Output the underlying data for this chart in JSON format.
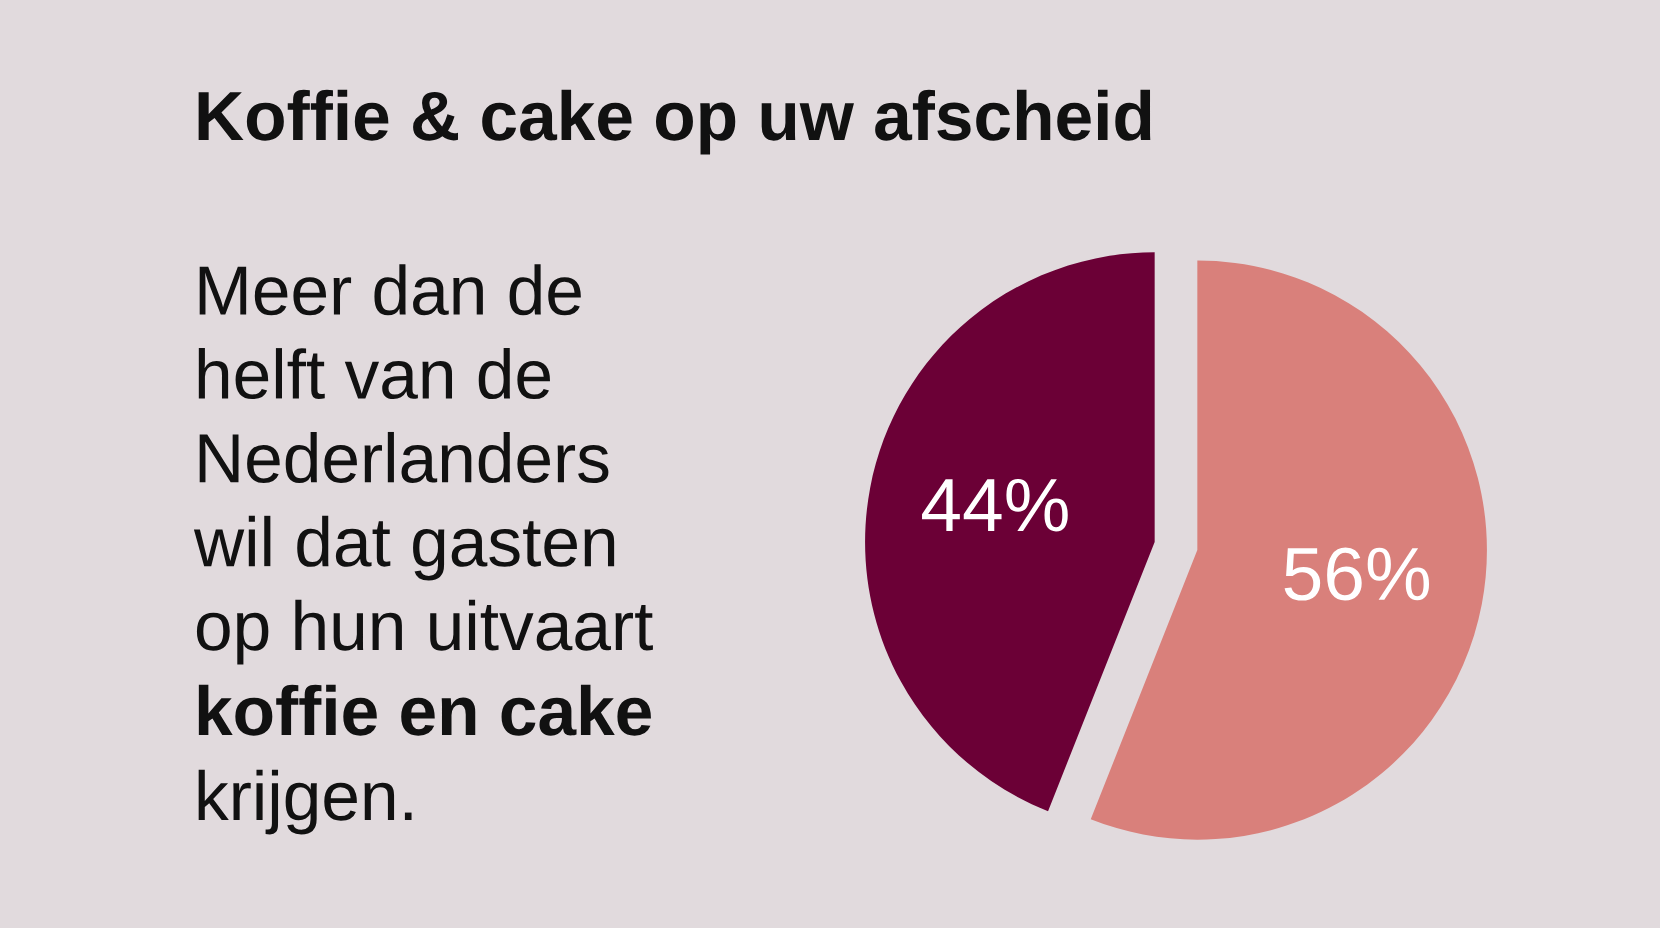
{
  "chart_data": {
    "type": "pie",
    "title": "Koffie & cake op uw afscheid",
    "categories": [
      null,
      null
    ],
    "values": [
      44,
      56
    ],
    "colors": [
      "#6b0036",
      "#d9807b"
    ],
    "value_labels": [
      "44%",
      "56%"
    ],
    "annotations": [
      "Meer dan de\nhelft van de\nNederlanders\nwil dat gasten\nop hun uitvaart",
      "koffie en cake",
      "krijgen."
    ]
  }
}
